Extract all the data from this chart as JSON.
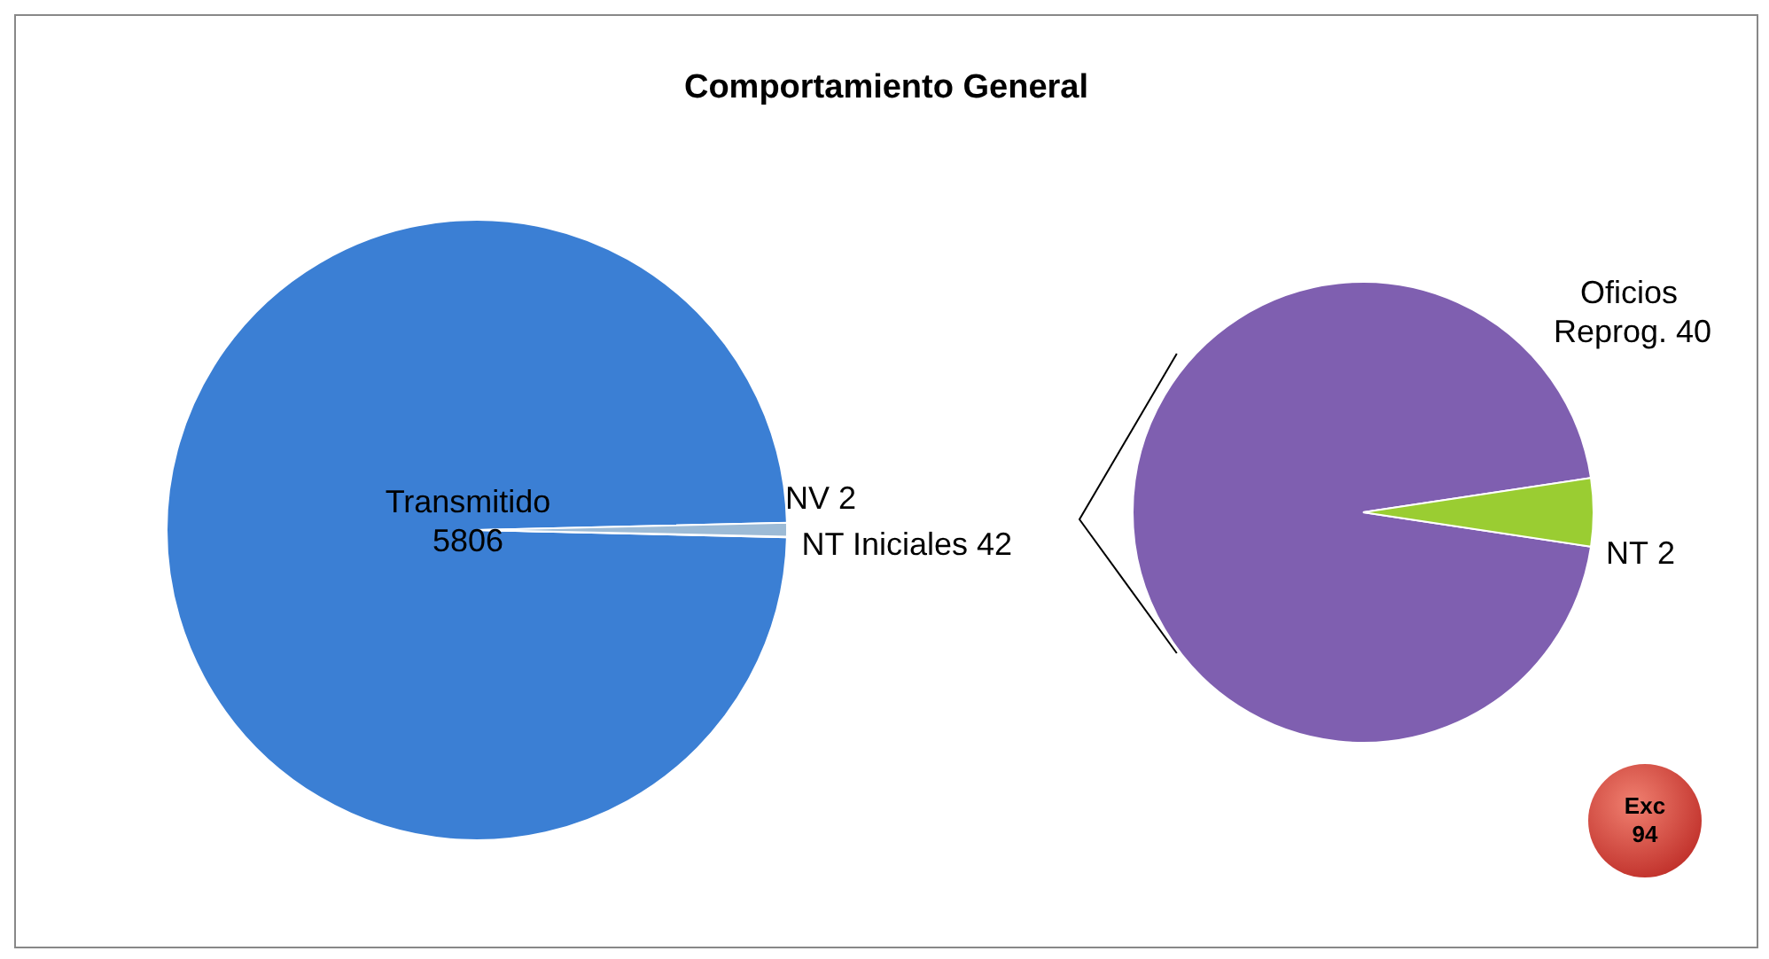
{
  "chart_data": [
    {
      "type": "pie",
      "title": "Comportamiento General",
      "categories": [
        "Transmitido",
        "NV",
        "NT Iniciales"
      ],
      "values": [
        5806,
        2,
        42
      ],
      "colors": [
        "#3b7fd4",
        "#4fc6dc",
        "#9dbbd6"
      ],
      "data_labels": true,
      "legend": false
    },
    {
      "type": "pie",
      "categories": [
        "Oficios Reprog.",
        "NT"
      ],
      "values": [
        40,
        2
      ],
      "colors": [
        "#7f5fb0",
        "#9acd32"
      ],
      "data_labels": true,
      "legend": false,
      "annotations": [
        "Exc 94"
      ]
    }
  ]
}
